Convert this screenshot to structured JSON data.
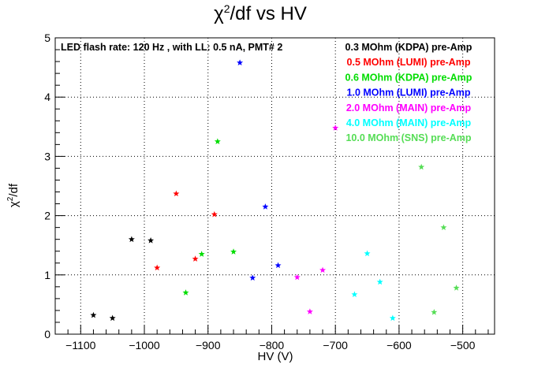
{
  "chart_data": {
    "type": "scatter",
    "title_main": "χ",
    "title_sup": "2",
    "title_rest": "/df vs HV",
    "xlabel": "HV (V)",
    "ylabel_main": "χ",
    "ylabel_sup": "2",
    "ylabel_rest": "/df",
    "xlim": [
      -1140,
      -450
    ],
    "ylim": [
      0,
      5
    ],
    "x_ticks": [
      -1100,
      -1000,
      -900,
      -800,
      -700,
      -600,
      -500
    ],
    "x_tick_labels": [
      "−1100",
      "−1000",
      "−900",
      "−800",
      "−700",
      "−600",
      "−500"
    ],
    "y_ticks": [
      0,
      1,
      2,
      3,
      4,
      5
    ],
    "y_tick_labels": [
      "0",
      "1",
      "2",
      "3",
      "4",
      "5"
    ],
    "grid": true,
    "annotation": "LED flash rate: 120 Hz , with LL: 0.5 nA, PMT# 2",
    "legend_position": "top-right",
    "series": [
      {
        "name": "0.3 MOhm (KDPA) pre-Amp",
        "color": "#000000",
        "x": [
          -1080,
          -1050,
          -1020,
          -990
        ],
        "y": [
          0.32,
          0.27,
          1.6,
          1.58
        ]
      },
      {
        "name": "0.5 MOhm (LUMI) pre-Amp",
        "color": "#ff0000",
        "x": [
          -980,
          -950,
          -920,
          -890
        ],
        "y": [
          1.12,
          2.37,
          1.27,
          2.02
        ]
      },
      {
        "name": "0.6 MOhm (KDPA) pre-Amp",
        "color": "#00dd00",
        "x": [
          -935,
          -910,
          -885,
          -860
        ],
        "y": [
          0.7,
          1.35,
          3.25,
          1.39
        ]
      },
      {
        "name": "1.0 MOhm (LUMI) pre-Amp",
        "color": "#0000ff",
        "x": [
          -850,
          -830,
          -810,
          -790
        ],
        "y": [
          4.58,
          0.95,
          2.15,
          1.16
        ]
      },
      {
        "name": "2.0 MOhm (MAIN) pre-Amp",
        "color": "#ff00ff",
        "x": [
          -760,
          -740,
          -720,
          -700
        ],
        "y": [
          0.96,
          0.38,
          1.08,
          3.48
        ]
      },
      {
        "name": "4.0 MOhm (MAIN) pre-Amp",
        "color": "#00ffff",
        "x": [
          -670,
          -650,
          -630,
          -610
        ],
        "y": [
          0.67,
          1.36,
          0.88,
          0.27
        ]
      },
      {
        "name": "10.0 MOhm (SNS) pre-Amp",
        "color": "#55dd55",
        "x": [
          -565,
          -545,
          -530,
          -510
        ],
        "y": [
          2.82,
          0.37,
          1.8,
          0.78
        ]
      }
    ]
  }
}
